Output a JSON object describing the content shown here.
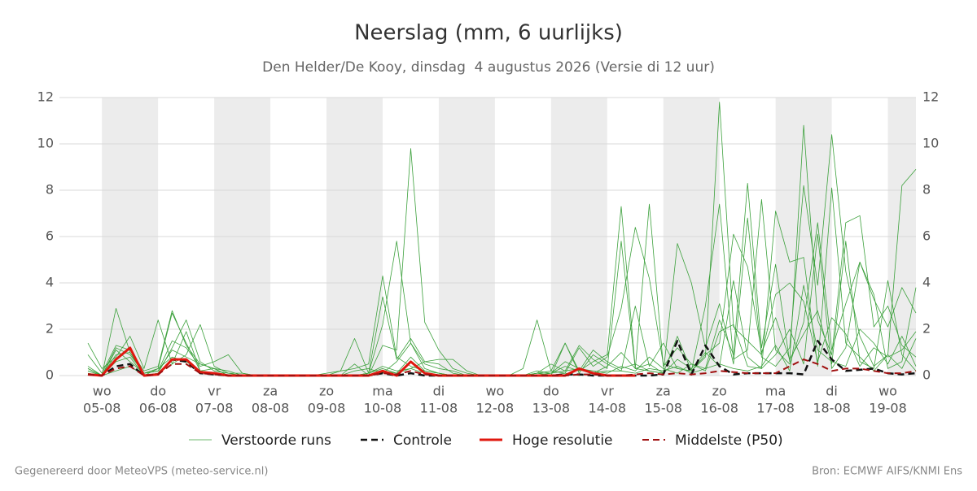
{
  "chart_data": {
    "type": "line",
    "title": "Neerslag (mm, 6 uurlijks)",
    "subtitle": "Den Helder/De Kooy, dinsdag  4 augustus 2026 (Versie di 12 uur)",
    "footer_left": "Gegenereerd door MeteoVPS (meteo-service.nl)",
    "footer_right": "Bron: ECMWF AIFS/KNMI Ens",
    "categories": [
      null,
      [
        "wo",
        "05-08"
      ],
      null,
      null,
      null,
      [
        "do",
        "06-08"
      ],
      null,
      null,
      null,
      [
        "vr",
        "07-08"
      ],
      null,
      null,
      null,
      [
        "za",
        "08-08"
      ],
      null,
      null,
      null,
      [
        "zo",
        "09-08"
      ],
      null,
      null,
      null,
      [
        "ma",
        "10-08"
      ],
      null,
      null,
      null,
      [
        "di",
        "11-08"
      ],
      null,
      null,
      null,
      [
        "wo",
        "12-08"
      ],
      null,
      null,
      null,
      [
        "do",
        "13-08"
      ],
      null,
      null,
      null,
      [
        "vr",
        "14-08"
      ],
      null,
      null,
      null,
      [
        "za",
        "15-08"
      ],
      null,
      null,
      null,
      [
        "zo",
        "16-08"
      ],
      null,
      null,
      null,
      [
        "ma",
        "17-08"
      ],
      null,
      null,
      null,
      [
        "di",
        "18-08"
      ],
      null,
      null,
      null,
      [
        "wo",
        "19-08"
      ],
      null,
      null
    ],
    "ylim": [
      0,
      12
    ],
    "yticks": [
      0,
      2,
      4,
      6,
      8,
      10,
      12
    ],
    "y2lim": [
      0,
      12
    ],
    "y2ticks": [
      0,
      2,
      4,
      6,
      8,
      10,
      12
    ],
    "grid": true,
    "ensemble": {
      "name": "Verstoorde runs",
      "color": "#3ba03b",
      "members": [
        [
          0.4,
          0,
          1.2,
          0.9,
          0.1,
          0.2,
          1.1,
          0.8,
          0.5,
          0.3,
          0,
          0,
          0,
          0,
          0,
          0,
          0,
          0.1,
          0.2,
          0.3,
          0.5,
          4.3,
          0.8,
          0.4,
          0.2,
          0.1,
          0,
          0,
          0,
          0,
          0,
          0,
          0.1,
          0.2,
          0.1,
          1.2,
          0.4,
          0.8,
          2.9,
          6.4,
          4.2,
          0.5,
          0.3,
          0.2,
          0.8,
          11.8,
          2.1,
          1.5,
          0.9,
          3.5,
          4.0,
          3.2,
          0.6,
          2.5,
          1.8,
          0.4,
          1.2,
          0.8,
          1.1,
          1.9
        ],
        [
          1.4,
          0.3,
          0.8,
          1.7,
          0.3,
          2.4,
          0.5,
          0.9,
          2.2,
          0.4,
          0.1,
          0,
          0,
          0,
          0,
          0,
          0,
          0,
          0,
          0,
          0.1,
          2.2,
          5.8,
          1.4,
          0.3,
          0.1,
          0,
          0,
          0,
          0,
          0,
          0,
          0.1,
          0.5,
          0.2,
          0.3,
          0.1,
          0.4,
          1.0,
          0.3,
          7.4,
          0.4,
          1.2,
          0.5,
          0.3,
          2.4,
          0.9,
          8.3,
          1.2,
          4.8,
          0.6,
          10.8,
          2.4,
          0.9,
          6.6,
          6.9,
          2.1,
          3.0,
          1.3,
          0.8
        ],
        [
          0.2,
          0,
          2.9,
          1.0,
          0.1,
          0.3,
          2.7,
          1.4,
          0.2,
          0.1,
          0,
          0,
          0,
          0,
          0,
          0,
          0,
          0,
          0,
          0.5,
          0,
          1.3,
          1.1,
          9.8,
          2.3,
          1.1,
          0.3,
          0.1,
          0,
          0,
          0,
          0,
          0.2,
          0.1,
          0.4,
          0.2,
          1.1,
          0.6,
          0.3,
          0.5,
          0.2,
          0.1,
          5.7,
          4.0,
          1.2,
          3.1,
          0.5,
          6.8,
          0.8,
          0.4,
          1.2,
          8.2,
          3.9,
          10.4,
          4.5,
          1.7,
          0.4,
          0.9,
          8.2,
          8.9
        ],
        [
          0.9,
          0.1,
          1.3,
          1.1,
          0.2,
          0.4,
          2.8,
          1.3,
          0.5,
          0.3,
          0.2,
          0,
          0,
          0,
          0,
          0,
          0,
          0,
          0,
          0,
          0.1,
          3.4,
          0.7,
          1.6,
          0.6,
          0.7,
          0.7,
          0.2,
          0,
          0,
          0,
          0.3,
          2.4,
          0.2,
          1.4,
          0.1,
          0.9,
          0.5,
          0.2,
          3.0,
          0.4,
          1.4,
          0.3,
          0.2,
          3.0,
          7.4,
          0.7,
          1.1,
          7.6,
          1.1,
          0.5,
          2.3,
          6.6,
          1.1,
          3.1,
          4.9,
          3.3,
          2.1,
          3.8,
          2.7
        ],
        [
          0.3,
          0,
          0.6,
          0.8,
          0,
          0.1,
          1.2,
          2.4,
          0.6,
          0.2,
          0.1,
          0.1,
          0,
          0,
          0,
          0,
          0,
          0,
          0.2,
          1.6,
          0.1,
          0.4,
          0.2,
          0.3,
          0.6,
          0.5,
          0.1,
          0,
          0,
          0,
          0,
          0,
          0.1,
          0,
          1.4,
          0.2,
          0.6,
          0.9,
          7.3,
          0.3,
          0.5,
          0.1,
          0.7,
          0.3,
          1.0,
          0.4,
          4.1,
          0.8,
          0.3,
          7.1,
          4.9,
          5.1,
          0.4,
          8.1,
          1.4,
          0.8,
          0.2,
          0.9,
          0.3,
          1.6
        ],
        [
          0.1,
          0,
          0.2,
          0.4,
          0,
          0.1,
          0.5,
          1.9,
          0.2,
          0.3,
          0,
          0,
          0,
          0,
          0,
          0,
          0,
          0,
          0,
          0,
          0.1,
          0.3,
          0.1,
          0.8,
          0.2,
          0.1,
          0,
          0,
          0,
          0,
          0,
          0,
          0,
          0.1,
          0.2,
          1.3,
          0.7,
          0.3,
          5.8,
          0.3,
          0.2,
          0.1,
          1.7,
          0.2,
          0.9,
          1.4,
          6.1,
          4.7,
          1.0,
          2.5,
          0.7,
          1.8,
          2.8,
          0.5,
          5.8,
          0.6,
          0.3,
          4.1,
          0.9,
          0.2
        ],
        [
          0.2,
          0,
          1.1,
          0.6,
          0.1,
          0.2,
          1.5,
          1.2,
          0.4,
          0.6,
          0.9,
          0.1,
          0,
          0,
          0,
          0,
          0,
          0,
          0,
          0.2,
          0.3,
          0.1,
          0.6,
          1.4,
          0.5,
          0.3,
          0.2,
          0,
          0,
          0,
          0,
          0,
          0.1,
          0.1,
          0.6,
          0.3,
          0.2,
          0.1,
          0.4,
          0.2,
          0.8,
          0.3,
          0.1,
          0.5,
          0.2,
          1.9,
          2.2,
          0.4,
          0.3,
          0.9,
          2.0,
          0.5,
          6.1,
          0.3,
          1.2,
          4.9,
          3.5,
          0.3,
          0.6,
          3.8
        ],
        [
          0.3,
          0,
          0.9,
          1.0,
          0,
          0.3,
          0.8,
          0.6,
          0.2,
          0.1,
          0,
          0,
          0,
          0,
          0,
          0,
          0,
          0,
          0,
          0,
          0,
          0.2,
          0.1,
          0.3,
          0.1,
          0,
          0,
          0,
          0,
          0,
          0,
          0,
          0,
          0,
          0.1,
          0,
          0.1,
          0.2,
          0.2,
          0.1,
          0.3,
          0.2,
          0.4,
          0.1,
          0.3,
          0.5,
          0.3,
          0.2,
          0.4,
          1.3,
          0.2,
          3.9,
          1.1,
          0.6,
          0.4,
          2.0,
          1.4,
          0.5,
          1.7,
          0.4
        ]
      ]
    },
    "series": [
      {
        "name": "Controle",
        "color": "#111111",
        "dash": true,
        "width": 2.5,
        "values": [
          0.05,
          0,
          0.4,
          0.5,
          0,
          0.05,
          0.7,
          0.6,
          0.1,
          0.05,
          0,
          0,
          0,
          0,
          0,
          0,
          0,
          0,
          0,
          0,
          0,
          0.1,
          0,
          0.1,
          0,
          0,
          0,
          0,
          0,
          0,
          0,
          0,
          0,
          0,
          0.05,
          0.05,
          0,
          0,
          0,
          0,
          0,
          0.05,
          1.5,
          0.05,
          1.3,
          0.4,
          0.05,
          0.1,
          0.1,
          0.1,
          0.1,
          0.05,
          1.5,
          0.7,
          0.2,
          0.25,
          0.3,
          0.1,
          0.05,
          0.1
        ]
      },
      {
        "name": "Hoge resolutie",
        "color": "#e0180f",
        "dash": false,
        "width": 3,
        "values": [
          0.05,
          0,
          0.7,
          1.2,
          0,
          0.05,
          0.7,
          0.7,
          0.15,
          0.1,
          0,
          0,
          0,
          0,
          0,
          0,
          0,
          0,
          0,
          0,
          0,
          0.2,
          0,
          0.6,
          0.1,
          0,
          0,
          0,
          0,
          0,
          0,
          0,
          0,
          0,
          0,
          0.3,
          0.1,
          0,
          0,
          0,
          null,
          null,
          null,
          null,
          null,
          null,
          null,
          null,
          null,
          null,
          null,
          null,
          null,
          null,
          null,
          null,
          null,
          null,
          null,
          null
        ]
      },
      {
        "name": "Middelste (P50)",
        "color": "#a01010",
        "dash": true,
        "width": 2,
        "values": [
          0.05,
          0,
          0.3,
          0.4,
          0,
          0.05,
          0.5,
          0.5,
          0.1,
          0.05,
          0,
          0,
          0,
          0,
          0,
          0,
          0,
          0,
          0,
          0,
          0,
          0.1,
          0.05,
          0.2,
          0.05,
          0,
          0,
          0,
          0,
          0,
          0,
          0,
          0,
          0,
          0,
          0.05,
          0.05,
          0,
          0,
          0.05,
          0.1,
          0.05,
          0.1,
          0.05,
          0.1,
          0.2,
          0.15,
          0.1,
          0.1,
          0.1,
          0.4,
          0.7,
          0.5,
          0.2,
          0.3,
          0.3,
          0.2,
          0.1,
          0.1,
          0.2
        ]
      }
    ]
  }
}
